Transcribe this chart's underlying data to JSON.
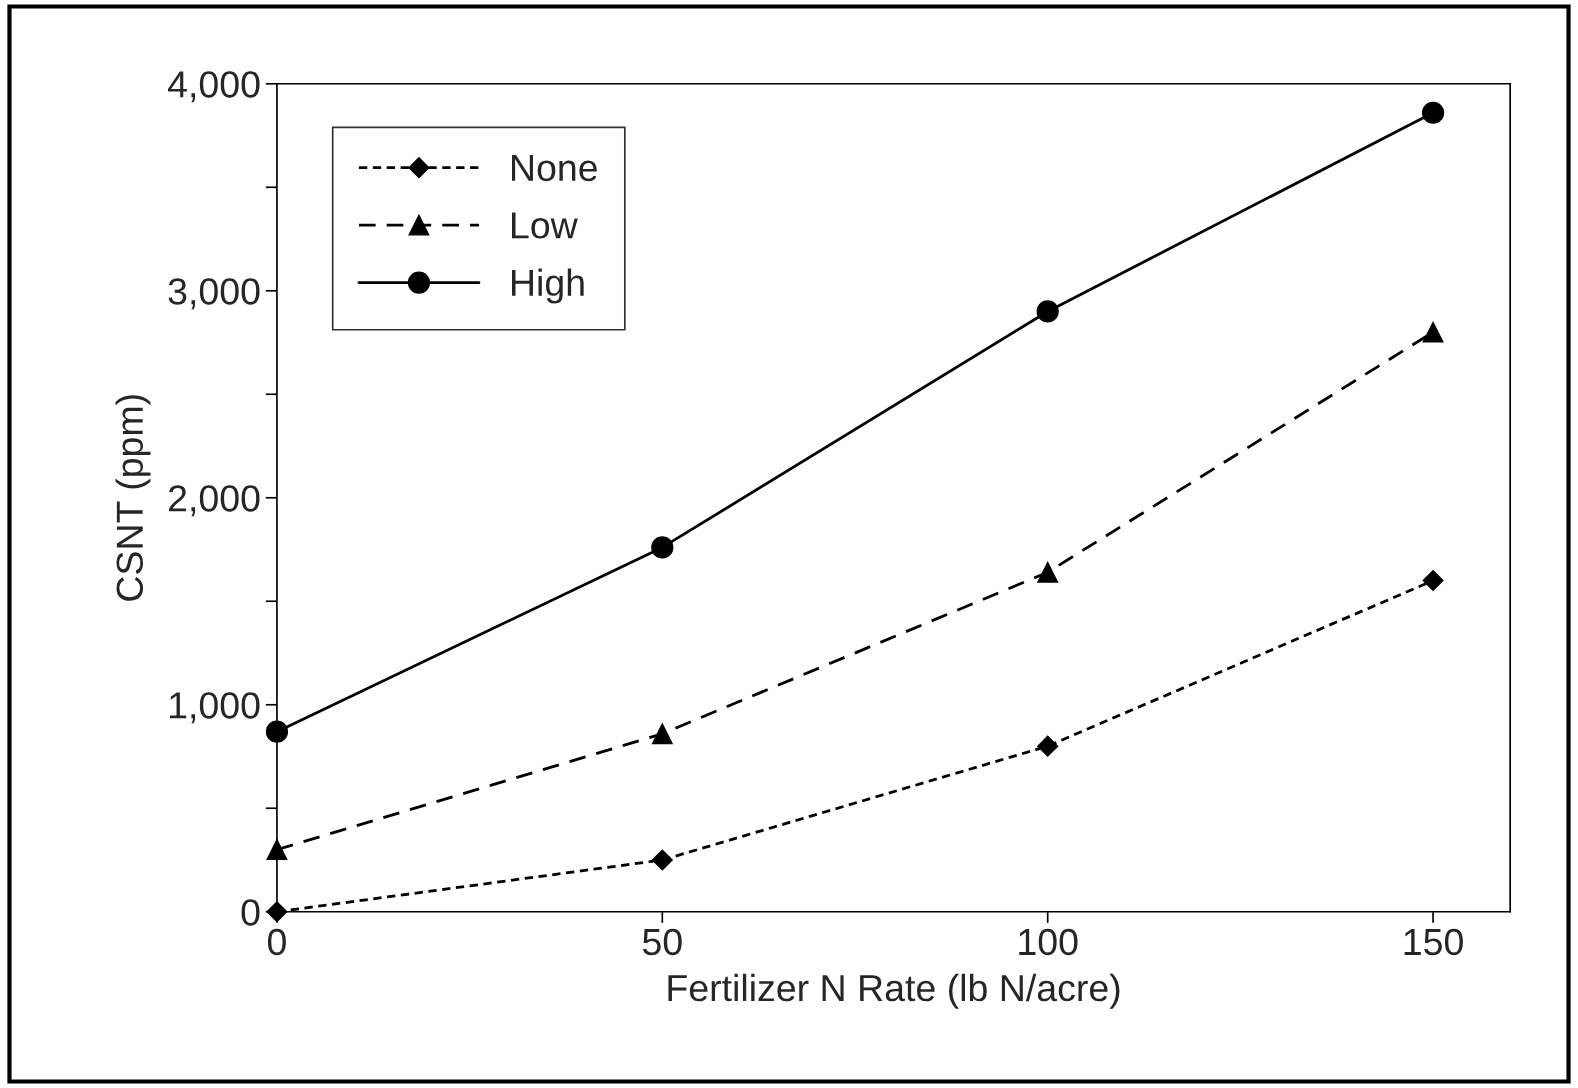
{
  "chart_data": {
    "type": "line",
    "xlabel": "Fertilizer N Rate (lb N/acre)",
    "ylabel": "CSNT (ppm)",
    "x": [
      0,
      50,
      100,
      150
    ],
    "series": [
      {
        "name": "None",
        "color": "#000000",
        "marker": "diamond",
        "line_style": "dotted",
        "values": [
          0,
          250,
          800,
          1600
        ]
      },
      {
        "name": "Low",
        "color": "#000000",
        "marker": "triangle",
        "line_style": "dashed",
        "values": [
          300,
          860,
          1640,
          2800
        ]
      },
      {
        "name": "High",
        "color": "#000000",
        "marker": "circle",
        "line_style": "solid",
        "values": [
          870,
          1760,
          2900,
          3860
        ]
      }
    ],
    "xlim": [
      0,
      160
    ],
    "xticks": [
      0,
      50,
      100,
      150
    ],
    "ylim": [
      0,
      4000
    ],
    "yticks": [
      0,
      {
        "value": 500,
        "label": null
      },
      {
        "value": 1000,
        "label": "1,000"
      },
      {
        "value": 1500,
        "label": null
      },
      {
        "value": 2000,
        "label": "2,000"
      },
      {
        "value": 2500,
        "label": null
      },
      {
        "value": 3000,
        "label": "3,000"
      },
      {
        "value": 3500,
        "label": null
      },
      {
        "value": 4000,
        "label": "4,000"
      }
    ],
    "grid": false,
    "legend": "top left"
  }
}
